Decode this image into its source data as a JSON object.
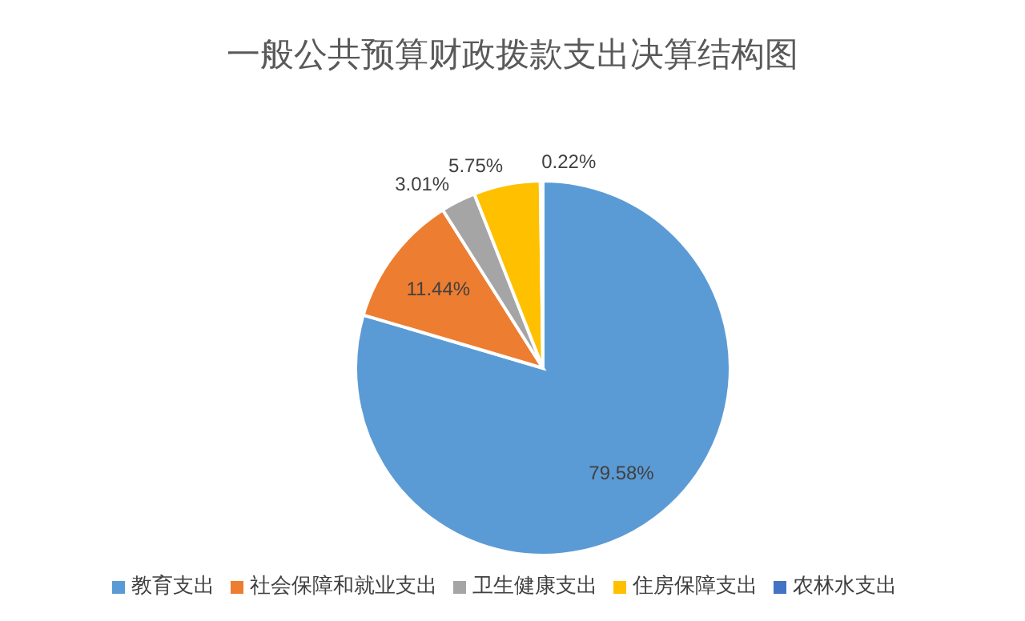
{
  "chart_data": {
    "type": "pie",
    "title": "一般公共预算财政拨款支出决算结构图",
    "categories": [
      "教育支出",
      "社会保障和就业支出",
      "卫生健康支出",
      "住房保障支出",
      "农林水支出"
    ],
    "values": [
      79.58,
      11.44,
      3.01,
      5.75,
      0.22
    ],
    "colors": [
      "#5b9bd5",
      "#ed7d31",
      "#a5a5a5",
      "#ffc000",
      "#4472c4"
    ],
    "value_labels": [
      "79.58%",
      "11.44%",
      "3.01%",
      "5.75%",
      "0.22%"
    ],
    "legend": "bottom"
  }
}
